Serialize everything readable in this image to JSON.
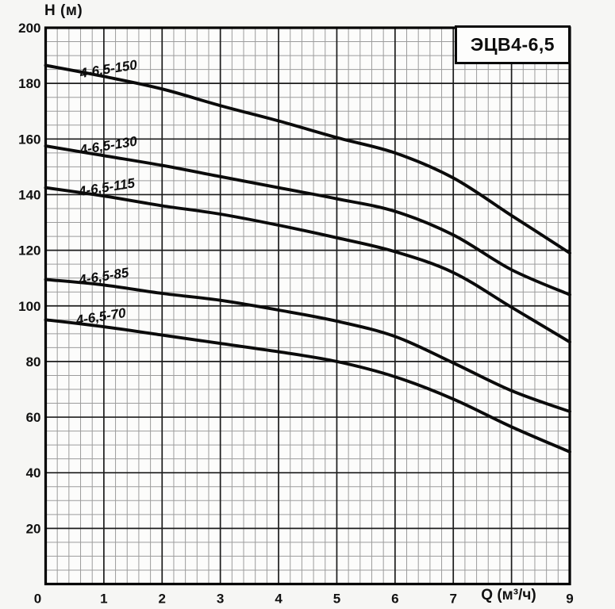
{
  "title_box": {
    "label": "ЭЦВ4-6,5"
  },
  "chart_data": {
    "type": "line",
    "title": "ЭЦВ4-6,5",
    "xlabel": "Q (м³/ч)",
    "ylabel": "H (м)",
    "xlim": [
      0,
      9
    ],
    "ylim": [
      0,
      200
    ],
    "x_major_step": 1,
    "y_major_step": 20,
    "x_minor_step": 0.2,
    "y_minor_step": 5,
    "grid": true,
    "x_tick_labels": [
      "0",
      "1",
      "2",
      "3",
      "4",
      "5",
      "6",
      "7",
      "",
      "9"
    ],
    "y_tick_values": [
      20,
      40,
      60,
      80,
      100,
      120,
      140,
      160,
      180,
      200
    ],
    "x": [
      0,
      1,
      2,
      3,
      4,
      5,
      6,
      7,
      8,
      9
    ],
    "series": [
      {
        "name": "4-6,5-150",
        "values": [
          186.5,
          182.5,
          178.0,
          172.0,
          166.5,
          160.5,
          155.0,
          146.0,
          132.5,
          119.0
        ],
        "label": {
          "x": 1.08,
          "y": 185.0,
          "rotate": -9
        }
      },
      {
        "name": "4-6,5-130",
        "values": [
          157.5,
          154.0,
          150.5,
          146.5,
          142.5,
          138.5,
          134.0,
          125.5,
          113.0,
          104.0
        ],
        "label": {
          "x": 1.08,
          "y": 157.5,
          "rotate": -9
        }
      },
      {
        "name": "4-6,5-115",
        "values": [
          142.5,
          139.5,
          136.0,
          133.0,
          129.0,
          124.5,
          119.5,
          112.0,
          99.5,
          87.0
        ],
        "label": {
          "x": 1.05,
          "y": 142.5,
          "rotate": -9
        }
      },
      {
        "name": "4-6,5-85",
        "values": [
          109.5,
          107.5,
          104.5,
          102.0,
          98.5,
          94.5,
          89.0,
          79.5,
          69.5,
          62.0
        ],
        "label": {
          "x": 1.0,
          "y": 110.5,
          "rotate": -9
        }
      },
      {
        "name": "4-6,5-70",
        "values": [
          95.0,
          92.5,
          89.5,
          86.5,
          83.5,
          80.0,
          74.5,
          66.5,
          56.5,
          47.5
        ],
        "label": {
          "x": 0.95,
          "y": 96.0,
          "rotate": -9
        }
      }
    ],
    "line_color": "#0b0b0b",
    "major_grid_color": "#1c1c1c",
    "minor_grid_color": "#9c9c9c",
    "plot_background": "#fcfcfb"
  }
}
